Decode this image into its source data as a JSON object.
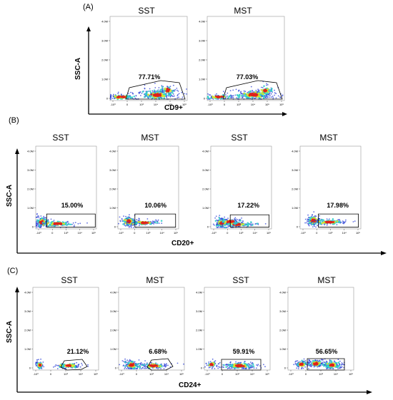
{
  "chart_data": [
    {
      "type": "scatter",
      "panel_label": "(A)",
      "ylabel": "SSC-A",
      "xlabel": "CD9+",
      "y_ticks": [
        "0",
        "1.0M",
        "2.0M",
        "3.0M",
        "4.0M"
      ],
      "x_ticks": [
        "-10³",
        "0",
        "10³",
        "10⁴",
        "10⁵",
        "10⁶"
      ],
      "plots": [
        {
          "name": "SST",
          "percent": "77.71%"
        },
        {
          "name": "MST",
          "percent": "77.03%"
        }
      ]
    },
    {
      "type": "scatter",
      "panel_label": "(B)",
      "ylabel": "SSC-A",
      "xlabel": "CD20+",
      "y_ticks": [
        "0",
        "1.0M",
        "2.0M",
        "3.0M",
        "4.0M"
      ],
      "x_ticks": [
        "-10³",
        "0",
        "10³",
        "10⁴",
        "10⁵"
      ],
      "plots": [
        {
          "name": "SST",
          "percent": "15.00%"
        },
        {
          "name": "MST",
          "percent": "10.06%"
        },
        {
          "name": "SST",
          "percent": "17.22%"
        },
        {
          "name": "MST",
          "percent": "17.98%"
        }
      ]
    },
    {
      "type": "scatter",
      "panel_label": "(C)",
      "ylabel": "SSC-A",
      "xlabel": "CD24+",
      "y_ticks": [
        "0",
        "1.0M",
        "2.0M",
        "3.0M",
        "4.0M"
      ],
      "x_ticks": [
        "-10³",
        "0",
        "10³",
        "10⁴",
        "10⁵"
      ],
      "plots": [
        {
          "name": "SST",
          "percent": "21.12%"
        },
        {
          "name": "MST",
          "percent": "6.68%"
        },
        {
          "name": "SST",
          "percent": "59.91%"
        },
        {
          "name": "MST",
          "percent": "56.65%"
        }
      ]
    }
  ],
  "colors": {
    "density_low": "#2b3fd6",
    "density_mid": "#2fd0c8",
    "density_high": "#d7e62a",
    "density_peak": "#e0211c",
    "axis": "#000000"
  }
}
